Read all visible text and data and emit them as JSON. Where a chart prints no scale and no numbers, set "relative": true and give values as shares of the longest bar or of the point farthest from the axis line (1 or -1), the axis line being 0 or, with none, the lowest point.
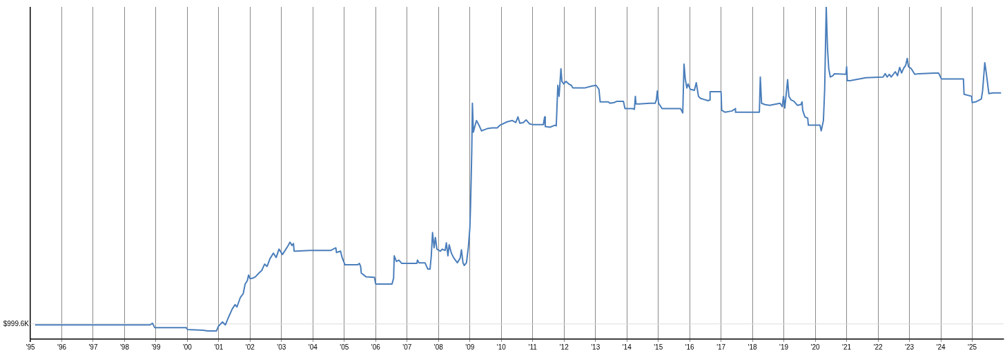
{
  "chart_data": {
    "type": "line",
    "relative": true,
    "grid": "x",
    "marker": "none",
    "line_style": "solid",
    "legend": false,
    "xlim": [
      1995,
      2026
    ],
    "xticks": [
      {
        "value": 1995,
        "label": "'95"
      },
      {
        "value": 1996,
        "label": "'96"
      },
      {
        "value": 1997,
        "label": "'97"
      },
      {
        "value": 1998,
        "label": "'98"
      },
      {
        "value": 1999,
        "label": "'99"
      },
      {
        "value": 2000,
        "label": "'00"
      },
      {
        "value": 2001,
        "label": "'01"
      },
      {
        "value": 2002,
        "label": "'02"
      },
      {
        "value": 2003,
        "label": "'03"
      },
      {
        "value": 2004,
        "label": "'04"
      },
      {
        "value": 2005,
        "label": "'05"
      },
      {
        "value": 2006,
        "label": "'06"
      },
      {
        "value": 2007,
        "label": "'07"
      },
      {
        "value": 2008,
        "label": "'08"
      },
      {
        "value": 2009,
        "label": "'09"
      },
      {
        "value": 2010,
        "label": "'10"
      },
      {
        "value": 2011,
        "label": "'11"
      },
      {
        "value": 2012,
        "label": "'12"
      },
      {
        "value": 2013,
        "label": "'13"
      },
      {
        "value": 2014,
        "label": "'14"
      },
      {
        "value": 2015,
        "label": "'15"
      },
      {
        "value": 2016,
        "label": "'16"
      },
      {
        "value": 2017,
        "label": "'17"
      },
      {
        "value": 2018,
        "label": "'18"
      },
      {
        "value": 2019,
        "label": "'19"
      },
      {
        "value": 2020,
        "label": "'20"
      },
      {
        "value": 2021,
        "label": "'21"
      },
      {
        "value": 2022,
        "label": "'22"
      },
      {
        "value": 2023,
        "label": "'23"
      },
      {
        "value": 2024,
        "label": "'24"
      },
      {
        "value": 2025,
        "label": "'25"
      }
    ],
    "ref_lines": [
      {
        "axis": "y",
        "value": 0.046,
        "label": "$999.6K",
        "color": "#dddddd"
      }
    ],
    "series": [
      {
        "color": "#4a7ebb",
        "x": [
          1995.15,
          1998.81,
          1998.89,
          1998.96,
          1999.96,
          2000.01,
          2000.51,
          2000.64,
          2000.93,
          2000.99,
          2001.12,
          2001.21,
          2001.32,
          2001.43,
          2001.52,
          2001.58,
          2001.69,
          2001.78,
          2001.84,
          2001.91,
          2001.95,
          2002.0,
          2002.09,
          2002.17,
          2002.26,
          2002.37,
          2002.46,
          2002.54,
          2002.63,
          2002.74,
          2002.83,
          2002.92,
          2003.03,
          2003.14,
          2003.2,
          2003.27,
          2003.33,
          2003.38,
          2003.4,
          2003.46,
          2003.9,
          2004.56,
          2004.73,
          2004.75,
          2004.88,
          2004.93,
          2005.02,
          2005.43,
          2005.48,
          2005.52,
          2005.54,
          2005.69,
          2005.96,
          2006.0,
          2006.52,
          2006.57,
          2006.59,
          2006.66,
          2006.74,
          2006.83,
          2007.31,
          2007.33,
          2007.38,
          2007.57,
          2007.66,
          2007.73,
          2007.77,
          2007.81,
          2007.86,
          2007.9,
          2007.95,
          2008.06,
          2008.12,
          2008.21,
          2008.25,
          2008.3,
          2008.34,
          2008.41,
          2008.49,
          2008.6,
          2008.69,
          2008.73,
          2008.78,
          2008.82,
          2008.89,
          2008.95,
          2009.0,
          2009.02,
          2009.04,
          2009.06,
          2009.08,
          2009.11,
          2009.15,
          2009.21,
          2009.3,
          2009.37,
          2009.48,
          2009.56,
          2009.7,
          2009.87,
          2009.96,
          2010.18,
          2010.35,
          2010.46,
          2010.53,
          2010.59,
          2010.7,
          2010.79,
          2010.9,
          2011.01,
          2011.34,
          2011.38,
          2011.4,
          2011.55,
          2011.71,
          2011.75,
          2011.77,
          2011.8,
          2011.84,
          2011.9,
          2011.93,
          2011.99,
          2012.06,
          2012.15,
          2012.23,
          2012.28,
          2012.65,
          2012.89,
          2013.02,
          2013.11,
          2013.15,
          2013.41,
          2013.46,
          2013.59,
          2013.68,
          2013.89,
          2013.94,
          2014.18,
          2014.24,
          2014.27,
          2014.29,
          2014.4,
          2014.73,
          2014.9,
          2014.94,
          2014.97,
          2015.01,
          2015.12,
          2015.71,
          2015.78,
          2015.82,
          2015.86,
          2015.91,
          2015.95,
          2016.02,
          2016.15,
          2016.21,
          2016.28,
          2016.34,
          2016.58,
          2016.65,
          2016.65,
          2017.0,
          2017.02,
          2017.13,
          2017.35,
          2017.46,
          2017.46,
          2018.22,
          2018.25,
          2018.29,
          2018.4,
          2018.55,
          2018.77,
          2018.88,
          2018.95,
          2018.99,
          2019.03,
          2019.12,
          2019.16,
          2019.23,
          2019.32,
          2019.43,
          2019.54,
          2019.58,
          2019.6,
          2019.67,
          2019.76,
          2019.78,
          2020.15,
          2020.19,
          2020.26,
          2020.3,
          2020.35,
          2020.39,
          2020.43,
          2020.48,
          2020.56,
          2020.61,
          2020.98,
          2021.0,
          2021.02,
          2021.11,
          2021.61,
          2022.16,
          2022.23,
          2022.29,
          2022.36,
          2022.42,
          2022.55,
          2022.62,
          2022.69,
          2022.75,
          2022.82,
          2022.88,
          2022.93,
          2022.97,
          2023.06,
          2023.17,
          2023.3,
          2023.8,
          2023.93,
          2024.02,
          2024.72,
          2024.74,
          2024.98,
          2025.0,
          2025.11,
          2025.29,
          2025.33,
          2025.4,
          2025.44,
          2025.53,
          2025.66,
          2025.92
        ],
        "values": [
          0.043,
          0.043,
          0.048,
          0.035,
          0.035,
          0.029,
          0.027,
          0.025,
          0.025,
          0.039,
          0.052,
          0.043,
          0.068,
          0.091,
          0.104,
          0.097,
          0.126,
          0.137,
          0.166,
          0.176,
          0.193,
          0.182,
          0.184,
          0.188,
          0.197,
          0.207,
          0.226,
          0.219,
          0.242,
          0.259,
          0.246,
          0.271,
          0.255,
          0.271,
          0.28,
          0.292,
          0.282,
          0.288,
          0.265,
          0.265,
          0.267,
          0.267,
          0.275,
          0.261,
          0.265,
          0.246,
          0.224,
          0.224,
          0.228,
          0.219,
          0.199,
          0.188,
          0.186,
          0.166,
          0.166,
          0.184,
          0.251,
          0.234,
          0.238,
          0.228,
          0.228,
          0.238,
          0.23,
          0.23,
          0.211,
          0.211,
          0.251,
          0.321,
          0.275,
          0.306,
          0.271,
          0.265,
          0.271,
          0.267,
          0.29,
          0.251,
          0.284,
          0.259,
          0.244,
          0.23,
          0.244,
          0.269,
          0.23,
          0.222,
          0.23,
          0.275,
          0.337,
          0.4,
          0.482,
          0.569,
          0.71,
          0.623,
          0.638,
          0.658,
          0.642,
          0.627,
          0.631,
          0.634,
          0.636,
          0.636,
          0.644,
          0.654,
          0.658,
          0.652,
          0.669,
          0.65,
          0.652,
          0.66,
          0.648,
          0.646,
          0.646,
          0.669,
          0.64,
          0.638,
          0.644,
          0.642,
          0.689,
          0.764,
          0.731,
          0.814,
          0.776,
          0.768,
          0.776,
          0.768,
          0.764,
          0.756,
          0.756,
          0.762,
          0.764,
          0.752,
          0.714,
          0.714,
          0.71,
          0.712,
          0.716,
          0.716,
          0.694,
          0.694,
          0.692,
          0.731,
          0.708,
          0.708,
          0.71,
          0.71,
          0.72,
          0.747,
          0.71,
          0.694,
          0.694,
          0.681,
          0.828,
          0.783,
          0.756,
          0.768,
          0.752,
          0.749,
          0.772,
          0.731,
          0.725,
          0.718,
          0.72,
          0.745,
          0.745,
          0.689,
          0.683,
          0.687,
          0.694,
          0.683,
          0.683,
          0.789,
          0.71,
          0.706,
          0.704,
          0.708,
          0.71,
          0.7,
          0.731,
          0.696,
          0.781,
          0.731,
          0.72,
          0.716,
          0.704,
          0.706,
          0.714,
          0.689,
          0.669,
          0.665,
          0.644,
          0.644,
          0.627,
          0.658,
          0.752,
          1,
          0.876,
          0.814,
          0.789,
          0.793,
          0.799,
          0.797,
          0.82,
          0.778,
          0.778,
          0.787,
          0.789,
          0.799,
          0.789,
          0.797,
          0.789,
          0.805,
          0.793,
          0.818,
          0.801,
          0.816,
          0.824,
          0.845,
          0.82,
          0.814,
          0.797,
          0.799,
          0.801,
          0.801,
          0.783,
          0.783,
          0.737,
          0.731,
          0.712,
          0.714,
          0.723,
          0.747,
          0.832,
          0.807,
          0.739,
          0.741,
          0.741
        ]
      }
    ]
  }
}
